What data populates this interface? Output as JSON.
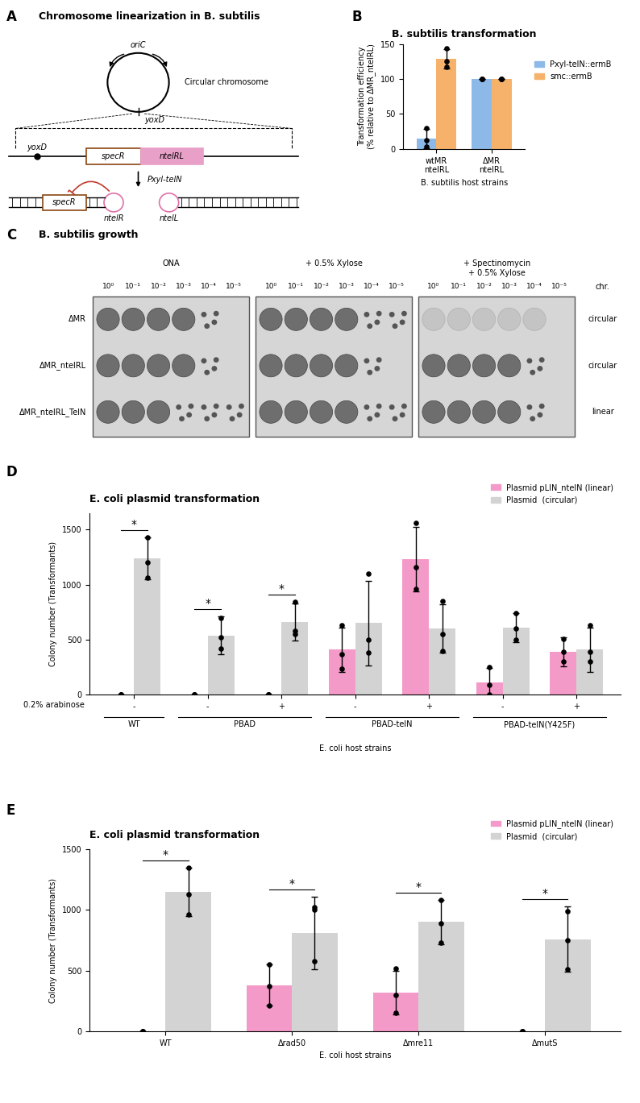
{
  "chart_data": [
    {
      "panel": "B",
      "type": "bar",
      "title": "B. subtilis transformation",
      "x_label": "B. subtilis host strains",
      "y_label": "Transformation efficiency\n(% relative to ΔMR_ntelRL)",
      "categories": [
        "wtMR\nntelRL",
        "ΔMR\nntelRL"
      ],
      "series": [
        {
          "name": "Pxyl-telN::ermB",
          "color": "#8db9e8",
          "values": [
            15,
            100
          ],
          "errors": [
            14,
            0
          ],
          "points": [
            [
              3,
              12,
              30
            ],
            [
              100,
              100,
              100
            ]
          ]
        },
        {
          "name": "smc::ermB",
          "color": "#f6b26b",
          "values": [
            129,
            100
          ],
          "errors": [
            14,
            0
          ],
          "points": [
            [
              117,
              126,
              144
            ],
            [
              100,
              100,
              100
            ]
          ]
        }
      ],
      "ylim": [
        0,
        150
      ],
      "yticks": [
        0,
        50,
        100,
        150
      ],
      "legend": "right"
    },
    {
      "panel": "D",
      "type": "bar",
      "title": "E. coli plasmid transformation",
      "y_label": "Colony number (Transformants)",
      "x_label": "E. coli host strains",
      "category_row_label": "0.2% arabinose",
      "categories": [
        "-",
        "-",
        "+",
        "-",
        "+",
        "-",
        "+"
      ],
      "groups": [
        {
          "label": "WT",
          "span": [
            0,
            0
          ]
        },
        {
          "label": "PBAD",
          "span": [
            1,
            2
          ]
        },
        {
          "label": "PBAD-telN",
          "span": [
            3,
            4
          ]
        },
        {
          "label": "PBAD-telN(Y425F)",
          "span": [
            5,
            6
          ]
        }
      ],
      "series": [
        {
          "name": "Plasmid pLIN_ntelN (linear)",
          "color": "#f49ac8",
          "values": [
            0,
            0,
            0,
            410,
            1230,
            115,
            390
          ],
          "errors": [
            0,
            0,
            0,
            200,
            290,
            130,
            130
          ],
          "points": [
            [
              0,
              0,
              0
            ],
            [
              0,
              0,
              0
            ],
            [
              0,
              0,
              0
            ],
            [
              240,
              370,
              630
            ],
            [
              960,
              1160,
              1560
            ],
            [
              0,
              90,
              250
            ],
            [
              300,
              390,
              510
            ]
          ]
        },
        {
          "name": "Plasmid  (circular)",
          "color": "#d3d3d3",
          "values": [
            1240,
            540,
            660,
            650,
            600,
            610,
            410
          ],
          "errors": [
            190,
            170,
            170,
            380,
            220,
            130,
            200
          ],
          "points": [
            [
              1060,
              1200,
              1430
            ],
            [
              420,
              520,
              700
            ],
            [
              550,
              580,
              840
            ],
            [
              380,
              500,
              1100
            ],
            [
              400,
              550,
              850
            ],
            [
              500,
              600,
              740
            ],
            [
              300,
              390,
              630
            ]
          ]
        }
      ],
      "significance": {
        "label": "*",
        "categories": [
          0,
          1,
          2
        ]
      },
      "ylim": [
        0,
        1650
      ],
      "yticks": [
        0,
        500,
        1000,
        1500
      ],
      "legend": "upper right"
    },
    {
      "panel": "E",
      "type": "bar",
      "title": "E. coli plasmid transformation",
      "y_label": "Colony number (Transformants)",
      "x_label": "E. coli host strains",
      "categories": [
        "WT",
        "Δrad50",
        "Δmre11",
        "ΔmutS"
      ],
      "series": [
        {
          "name": "Plasmid pLIN_ntelN (linear)",
          "color": "#f49ac8",
          "values": [
            0,
            380,
            320,
            0
          ],
          "errors": [
            0,
            170,
            180,
            0
          ],
          "points": [
            [
              0,
              0,
              0
            ],
            [
              210,
              370,
              550
            ],
            [
              150,
              300,
              520
            ],
            [
              0,
              0,
              0
            ]
          ]
        },
        {
          "name": "Plasmid  (circular)",
          "color": "#d3d3d3",
          "values": [
            1150,
            810,
            900,
            760
          ],
          "errors": [
            200,
            300,
            180,
            270
          ],
          "points": [
            [
              960,
              1130,
              1350
            ],
            [
              580,
              1000,
              1020
            ],
            [
              730,
              890,
              1080
            ],
            [
              510,
              750,
              990
            ]
          ]
        }
      ],
      "significance": {
        "label": "*",
        "categories": [
          0,
          1,
          2,
          3
        ]
      },
      "ylim": [
        0,
        1500
      ],
      "yticks": [
        0,
        500,
        1000,
        1500
      ],
      "legend": "upper right"
    }
  ],
  "diagram": {
    "panel": "A",
    "title": "Chromosome linearization in B. subtilis",
    "origin": "oriC",
    "locus": "yoxD",
    "circle_label": "Circular chromosome",
    "marker_gene": "specR",
    "cassette": "ntelRL",
    "inducer": "Pxyl-telN",
    "hairpins": [
      "ntelR",
      "ntelL"
    ]
  },
  "spot_assay": {
    "panel": "C",
    "title": "B. subtilis growth",
    "conditions": [
      "ONA",
      "+ 0.5% Xylose",
      "+ Spectinomycin\n+ 0.5% Xylose"
    ],
    "dilutions": [
      "10⁰",
      "10⁻¹",
      "10⁻²",
      "10⁻³",
      "10⁻⁴",
      "10⁻⁵"
    ],
    "strains": [
      "ΔMR",
      "ΔMR_ntelRL",
      "ΔMR_ntelRL_TelN"
    ],
    "chromosome_header": "chr.",
    "chromosome": [
      "circular",
      "circular",
      "linear"
    ]
  }
}
